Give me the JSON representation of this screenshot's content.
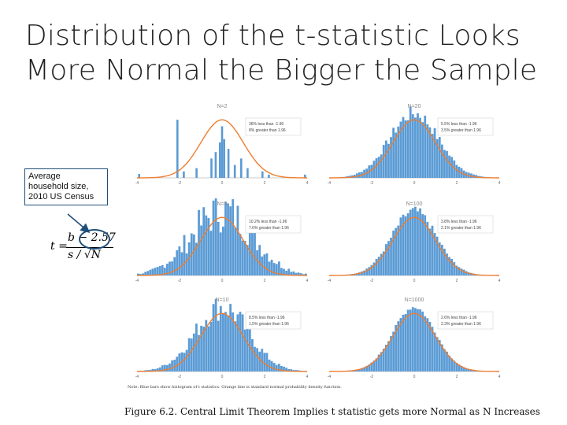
{
  "slide": {
    "title_line1": "Distribution of the t-statistic Looks",
    "title_line2": "More Normal the Bigger the Sample",
    "callout": [
      "Average",
      "household size,",
      "2010 US Census"
    ],
    "formula": {
      "lhs": "t =",
      "numerator": "b − 2.57",
      "denominator": "s / √N"
    },
    "note": "Note:   Blue bars show histogram of t statistics. Orange line is standard normal probability density function.",
    "caption": "Figure 6.2. Central Limit Theorem Implies t statistic gets more Normal as N Increases"
  },
  "colors": {
    "bar": "#5b9bd5",
    "curve": "#ed7d31",
    "callout_border": "#1f4e79"
  },
  "chart_data": [
    {
      "type": "bar",
      "title": "N=2",
      "annotation": [
        "36% less than -1.96",
        "8% greater than 1.96"
      ],
      "x_ticks": [
        "-4",
        "-2",
        "0",
        "2",
        "4"
      ],
      "xlim": [
        -4,
        4
      ],
      "shape": "spiky",
      "bars": [
        [
          -3.9,
          0.06
        ],
        [
          -2.1,
          0.9
        ],
        [
          -1.8,
          0.1
        ],
        [
          -1.2,
          0.15
        ],
        [
          -0.5,
          0.3
        ],
        [
          -0.3,
          0.4
        ],
        [
          -0.1,
          0.55
        ],
        [
          0,
          0.8
        ],
        [
          0.1,
          0.6
        ],
        [
          0.3,
          0.45
        ],
        [
          0.6,
          0.2
        ],
        [
          0.9,
          0.3
        ],
        [
          1.2,
          0.15
        ],
        [
          1.9,
          0.1
        ],
        [
          2.2,
          0.05
        ],
        [
          3.9,
          0.05
        ]
      ]
    },
    {
      "type": "bar",
      "title": "N=20",
      "annotation": [
        "5.5% less than -1.96",
        "3.5% greater than 1.96"
      ],
      "x_ticks": [
        "-4",
        "-2",
        "0",
        "2",
        "4"
      ],
      "xlim": [
        -4,
        4
      ],
      "shape": "normal",
      "spread": 1.15,
      "noise": 0.12
    },
    {
      "type": "bar",
      "title": "N=5",
      "annotation": [
        "10.2% less than -1.96",
        "7.6% greater than 1.96"
      ],
      "x_ticks": [
        "-4",
        "-2",
        "0",
        "2",
        "4"
      ],
      "xlim": [
        -4,
        4
      ],
      "shape": "normal",
      "spread": 1.45,
      "noise": 0.35
    },
    {
      "type": "bar",
      "title": "N=100",
      "annotation": [
        "3.8% less than -1.96",
        "2.1% greater than 1.96"
      ],
      "x_ticks": [
        "-4",
        "-2",
        "0",
        "2",
        "4"
      ],
      "xlim": [
        -4,
        4
      ],
      "shape": "normal",
      "spread": 1.05,
      "noise": 0.08
    },
    {
      "type": "bar",
      "title": "N=10",
      "annotation": [
        "8.5% less than -1.96",
        "1.5% greater than 1.96"
      ],
      "x_ticks": [
        "-4",
        "-2",
        "0",
        "2",
        "4"
      ],
      "xlim": [
        -4,
        4
      ],
      "shape": "normal",
      "spread": 1.25,
      "noise": 0.22
    },
    {
      "type": "bar",
      "title": "N=1000",
      "annotation": [
        "2.6% less than -1.96",
        "2.3% greater than 1.96"
      ],
      "x_ticks": [
        "-4",
        "-2",
        "0",
        "2",
        "4"
      ],
      "xlim": [
        -4,
        4
      ],
      "shape": "normal",
      "spread": 1.0,
      "noise": 0.04
    }
  ]
}
